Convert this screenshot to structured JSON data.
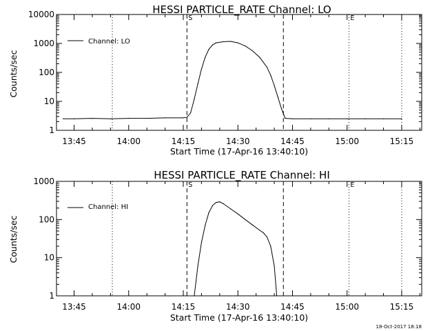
{
  "chart_data": [
    {
      "type": "line",
      "title": "HESSI PARTICLE_RATE Channel: LO",
      "xlabel": "Start Time (17-Apr-16 13:40:10)",
      "ylabel": "Counts/sec",
      "yscale": "log",
      "ylim": [
        1,
        10000
      ],
      "xlim": [
        "13:40:10",
        "15:20:30"
      ],
      "xticks": [
        "13:45",
        "14:00",
        "14:15",
        "14:30",
        "14:45",
        "15:00",
        "15:15"
      ],
      "yticks": [
        "1",
        "10",
        "100",
        "1000",
        "10000"
      ],
      "legend": "top-left",
      "grid": false,
      "markers": [
        {
          "label": "S",
          "time": "14:16:00",
          "style": "dashed"
        },
        {
          "label": "",
          "time": "14:42:30",
          "style": "dashed"
        },
        {
          "label": "E",
          "time": "15:00:30",
          "style": "dotted"
        },
        {
          "label": "",
          "time": "13:55:30",
          "style": "dotted"
        },
        {
          "label": "",
          "time": "15:15:00",
          "style": "dotted"
        }
      ],
      "series": [
        {
          "name": "Channel: LO",
          "points": [
            [
              "13:42:00",
              2.5
            ],
            [
              "13:45:00",
              2.5
            ],
            [
              "13:50:00",
              2.6
            ],
            [
              "13:55:00",
              2.5
            ],
            [
              "14:00:00",
              2.6
            ],
            [
              "14:05:00",
              2.6
            ],
            [
              "14:10:00",
              2.7
            ],
            [
              "14:15:00",
              2.7
            ],
            [
              "14:16:00",
              2.8
            ],
            [
              "14:17:00",
              4
            ],
            [
              "14:18:00",
              12
            ],
            [
              "14:19:00",
              40
            ],
            [
              "14:20:00",
              130
            ],
            [
              "14:21:00",
              330
            ],
            [
              "14:22:00",
              620
            ],
            [
              "14:23:00",
              880
            ],
            [
              "14:24:00",
              1050
            ],
            [
              "14:26:00",
              1150
            ],
            [
              "14:28:00",
              1180
            ],
            [
              "14:30:00",
              1050
            ],
            [
              "14:32:00",
              820
            ],
            [
              "14:34:00",
              560
            ],
            [
              "14:36:00",
              330
            ],
            [
              "14:38:00",
              150
            ],
            [
              "14:39:00",
              80
            ],
            [
              "14:40:00",
              35
            ],
            [
              "14:41:00",
              14
            ],
            [
              "14:42:00",
              5.5
            ],
            [
              "14:43:00",
              2.6
            ],
            [
              "14:45:00",
              2.5
            ],
            [
              "14:50:00",
              2.5
            ],
            [
              "14:55:00",
              2.5
            ],
            [
              "15:00:00",
              2.5
            ],
            [
              "15:05:00",
              2.5
            ],
            [
              "15:10:00",
              2.5
            ],
            [
              "15:15:00",
              2.5
            ]
          ]
        }
      ]
    },
    {
      "type": "line",
      "title": "HESSI PARTICLE_RATE Channel: HI",
      "xlabel": "Start Time (17-Apr-16 13:40:10)",
      "ylabel": "Counts/sec",
      "yscale": "log",
      "ylim": [
        1,
        1000
      ],
      "xlim": [
        "13:40:10",
        "15:20:30"
      ],
      "xticks": [
        "13:45",
        "14:00",
        "14:15",
        "14:30",
        "14:45",
        "15:00",
        "15:15"
      ],
      "yticks": [
        "1",
        "10",
        "100",
        "1000"
      ],
      "legend": "top-left",
      "grid": false,
      "markers": [
        {
          "label": "S",
          "time": "14:16:00",
          "style": "dashed"
        },
        {
          "label": "",
          "time": "14:42:30",
          "style": "dashed"
        },
        {
          "label": "E",
          "time": "15:00:30",
          "style": "dotted"
        },
        {
          "label": "",
          "time": "13:55:30",
          "style": "dotted"
        },
        {
          "label": "",
          "time": "15:15:00",
          "style": "dotted"
        }
      ],
      "series": [
        {
          "name": "Channel: HI",
          "points": [
            [
              "14:18:00",
              1
            ],
            [
              "14:19:00",
              6
            ],
            [
              "14:20:00",
              25
            ],
            [
              "14:21:00",
              70
            ],
            [
              "14:22:00",
              150
            ],
            [
              "14:23:00",
              230
            ],
            [
              "14:24:00",
              280
            ],
            [
              "14:25:00",
              290
            ],
            [
              "14:26:00",
              260
            ],
            [
              "14:28:00",
              190
            ],
            [
              "14:30:00",
              140
            ],
            [
              "14:32:00",
              100
            ],
            [
              "14:34:00",
              72
            ],
            [
              "14:36:00",
              52
            ],
            [
              "14:37:00",
              45
            ],
            [
              "14:38:00",
              35
            ],
            [
              "14:39:00",
              20
            ],
            [
              "14:40:00",
              6
            ],
            [
              "14:40:40",
              1
            ]
          ]
        }
      ]
    }
  ],
  "footer": {
    "timestamp": "18-Oct-2017 18:18"
  }
}
